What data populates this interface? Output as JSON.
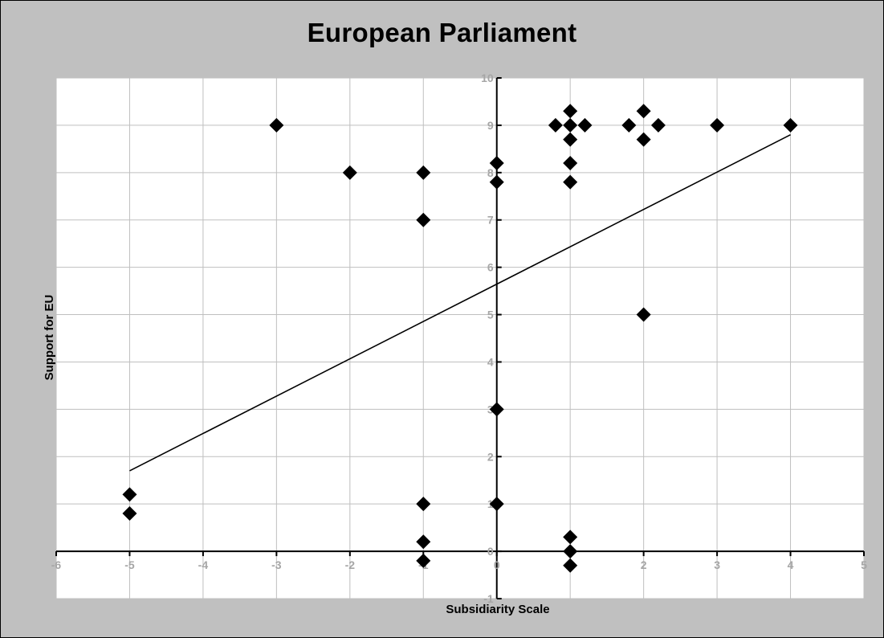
{
  "chart_data": {
    "type": "scatter",
    "title": "European Parliament",
    "xlabel": "Subsidiarity Scale",
    "ylabel": "Support for EU",
    "xlim": [
      -6,
      5
    ],
    "ylim": [
      -1,
      10
    ],
    "x_ticks": [
      -6,
      -5,
      -4,
      -3,
      -2,
      -1,
      0,
      1,
      2,
      3,
      4,
      5
    ],
    "y_ticks": [
      -1,
      0,
      1,
      2,
      3,
      4,
      5,
      6,
      7,
      8,
      9,
      10
    ],
    "grid": true,
    "legend": "none",
    "points": [
      {
        "x": -5,
        "y": 1.2
      },
      {
        "x": -5,
        "y": 0.8
      },
      {
        "x": -3,
        "y": 9
      },
      {
        "x": -2,
        "y": 8
      },
      {
        "x": -1,
        "y": 8
      },
      {
        "x": -1,
        "y": 7
      },
      {
        "x": -1,
        "y": 1
      },
      {
        "x": -1,
        "y": 0.2
      },
      {
        "x": -1,
        "y": -0.2
      },
      {
        "x": 0,
        "y": 8.2
      },
      {
        "x": 0,
        "y": 7.8
      },
      {
        "x": 0,
        "y": 3
      },
      {
        "x": 0,
        "y": 1
      },
      {
        "x": 0.8,
        "y": 9
      },
      {
        "x": 1,
        "y": 9.3
      },
      {
        "x": 1,
        "y": 9
      },
      {
        "x": 1.2,
        "y": 9
      },
      {
        "x": 1,
        "y": 8.7
      },
      {
        "x": 1,
        "y": 8.2
      },
      {
        "x": 1,
        "y": 7.8
      },
      {
        "x": 1,
        "y": 0.3
      },
      {
        "x": 1,
        "y": 0
      },
      {
        "x": 1,
        "y": -0.3
      },
      {
        "x": 1.8,
        "y": 9
      },
      {
        "x": 2,
        "y": 9.3
      },
      {
        "x": 2.2,
        "y": 9
      },
      {
        "x": 2,
        "y": 8.7
      },
      {
        "x": 2,
        "y": 5
      },
      {
        "x": 3,
        "y": 9
      },
      {
        "x": 4,
        "y": 9
      }
    ],
    "trendline": {
      "x": [
        -5,
        4
      ],
      "y": [
        1.7,
        8.8
      ]
    },
    "colors": {
      "background": "#c0c0c0",
      "plot_area": "#ffffff",
      "grid": "#bfbfbf",
      "axis": "#000000",
      "marker": "#000000",
      "tick_label": "#a6a6a6"
    }
  }
}
